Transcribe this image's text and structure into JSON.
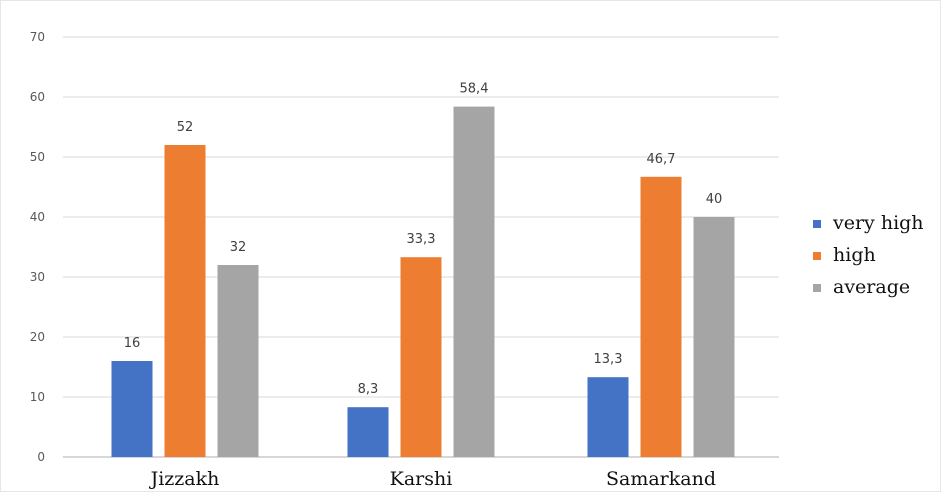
{
  "chart_data": {
    "type": "bar",
    "title": "",
    "xlabel": "",
    "ylabel": "",
    "categories": [
      "Jizzakh",
      "Karshi",
      "Samarkand"
    ],
    "series": [
      {
        "name": "very high",
        "color": "#4472c4",
        "values": [
          16,
          8.3,
          13.3
        ],
        "labels": [
          "16",
          "8,3",
          "13,3"
        ]
      },
      {
        "name": "high",
        "color": "#ed7d31",
        "values": [
          52,
          33.3,
          46.7
        ],
        "labels": [
          "52",
          "33,3",
          "46,7"
        ]
      },
      {
        "name": "average",
        "color": "#a5a5a5",
        "values": [
          32,
          58.4,
          40
        ],
        "labels": [
          "32",
          "58,4",
          "40"
        ]
      }
    ],
    "ylim": [
      0,
      70
    ],
    "yticks": [
      "0",
      "10",
      "20",
      "30",
      "40",
      "50",
      "60",
      "70"
    ],
    "grid": true,
    "legend_position": "right"
  }
}
